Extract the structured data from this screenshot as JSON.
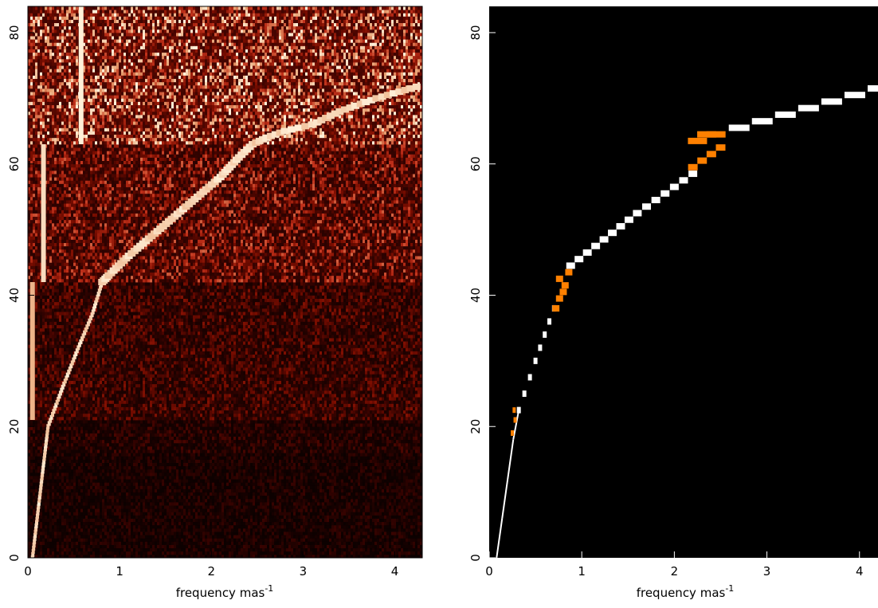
{
  "chart_data": [
    {
      "panel": "left",
      "type": "heatmap",
      "xlabel": "frequency mas",
      "xlabel_exponent": "-1",
      "ylabel": "",
      "xlim": [
        0,
        4.3
      ],
      "ylim": [
        0,
        84
      ],
      "xticks": [
        "0",
        "1",
        "2",
        "3",
        "4"
      ],
      "yticks": [
        "0",
        "20",
        "40",
        "60",
        "80"
      ],
      "colormap": [
        "#000000",
        "#3a0300",
        "#7a0d00",
        "#c0301a",
        "#e8a070",
        "#fff0d8"
      ],
      "noise_bands": [
        {
          "y": [
            0,
            16
          ],
          "level": 0.12
        },
        {
          "y": [
            16,
            21
          ],
          "level": 0.16
        },
        {
          "y": [
            21,
            42
          ],
          "level": 0.26
        },
        {
          "y": [
            42,
            63
          ],
          "level": 0.42
        },
        {
          "y": [
            63,
            84
          ],
          "level": 0.62
        }
      ],
      "vertical_features": [
        {
          "x": 0.58,
          "y": [
            63,
            84
          ],
          "level": 1.0
        },
        {
          "x": 0.17,
          "y": [
            42,
            63
          ],
          "level": 0.95
        },
        {
          "x": 0.05,
          "y": [
            21,
            42
          ],
          "level": 0.85
        }
      ],
      "ridge": {
        "x": [
          0.05,
          0.22,
          0.38,
          0.55,
          0.7,
          0.81,
          0.88,
          1.1,
          1.35,
          1.6,
          1.85,
          2.1,
          2.3,
          2.45,
          2.6,
          2.8,
          3.1,
          3.4,
          3.8,
          4.3
        ],
        "y": [
          0,
          20,
          26,
          32,
          37,
          42,
          43,
          46,
          49,
          52,
          55,
          58,
          61,
          63,
          64,
          65,
          66,
          68,
          70,
          72
        ]
      }
    },
    {
      "panel": "right",
      "type": "scatter",
      "background": "#000000",
      "xlabel": "frequency mas",
      "xlabel_exponent": "-1",
      "ylabel": "",
      "xlim": [
        0,
        4.2
      ],
      "ylim": [
        0,
        84
      ],
      "xticks": [
        "0",
        "1",
        "2",
        "3",
        "4"
      ],
      "yticks": [
        "0",
        "20",
        "40",
        "60",
        "80"
      ],
      "series": [
        {
          "role": "white",
          "color": "#ffffff",
          "x": [
            0.08,
            0.14,
            0.2,
            0.26,
            0.32,
            0.38,
            0.44,
            0.5,
            0.55,
            0.6,
            0.65,
            0.7,
            0.88,
            0.97,
            1.06,
            1.15,
            1.24,
            1.33,
            1.42,
            1.51,
            1.6,
            1.7,
            1.8,
            1.9,
            2.0,
            2.1,
            2.2,
            2.7,
            2.95,
            3.2,
            3.45,
            3.7,
            3.95,
            4.2
          ],
          "y": [
            0,
            6,
            12,
            18,
            22.5,
            25,
            27.5,
            30,
            32,
            34,
            36,
            38,
            44.5,
            45.5,
            46.5,
            47.5,
            48.5,
            49.5,
            50.5,
            51.5,
            52.5,
            53.5,
            54.5,
            55.5,
            56.5,
            57.5,
            58.5,
            65.5,
            66.5,
            67.5,
            68.5,
            69.5,
            70.5,
            71.5
          ]
        },
        {
          "role": "orange",
          "color": "#ff8000",
          "x": [
            0.25,
            0.28,
            0.27,
            0.72,
            0.76,
            0.8,
            0.82,
            0.76,
            0.86,
            2.2,
            2.3,
            2.4,
            2.5,
            2.25,
            2.35,
            2.45
          ],
          "y": [
            19,
            21,
            22.5,
            38,
            39.5,
            40.5,
            41.5,
            42.5,
            43.5,
            59.5,
            60.5,
            61.5,
            62.5,
            63.5,
            64.5,
            64.5
          ]
        }
      ]
    }
  ]
}
